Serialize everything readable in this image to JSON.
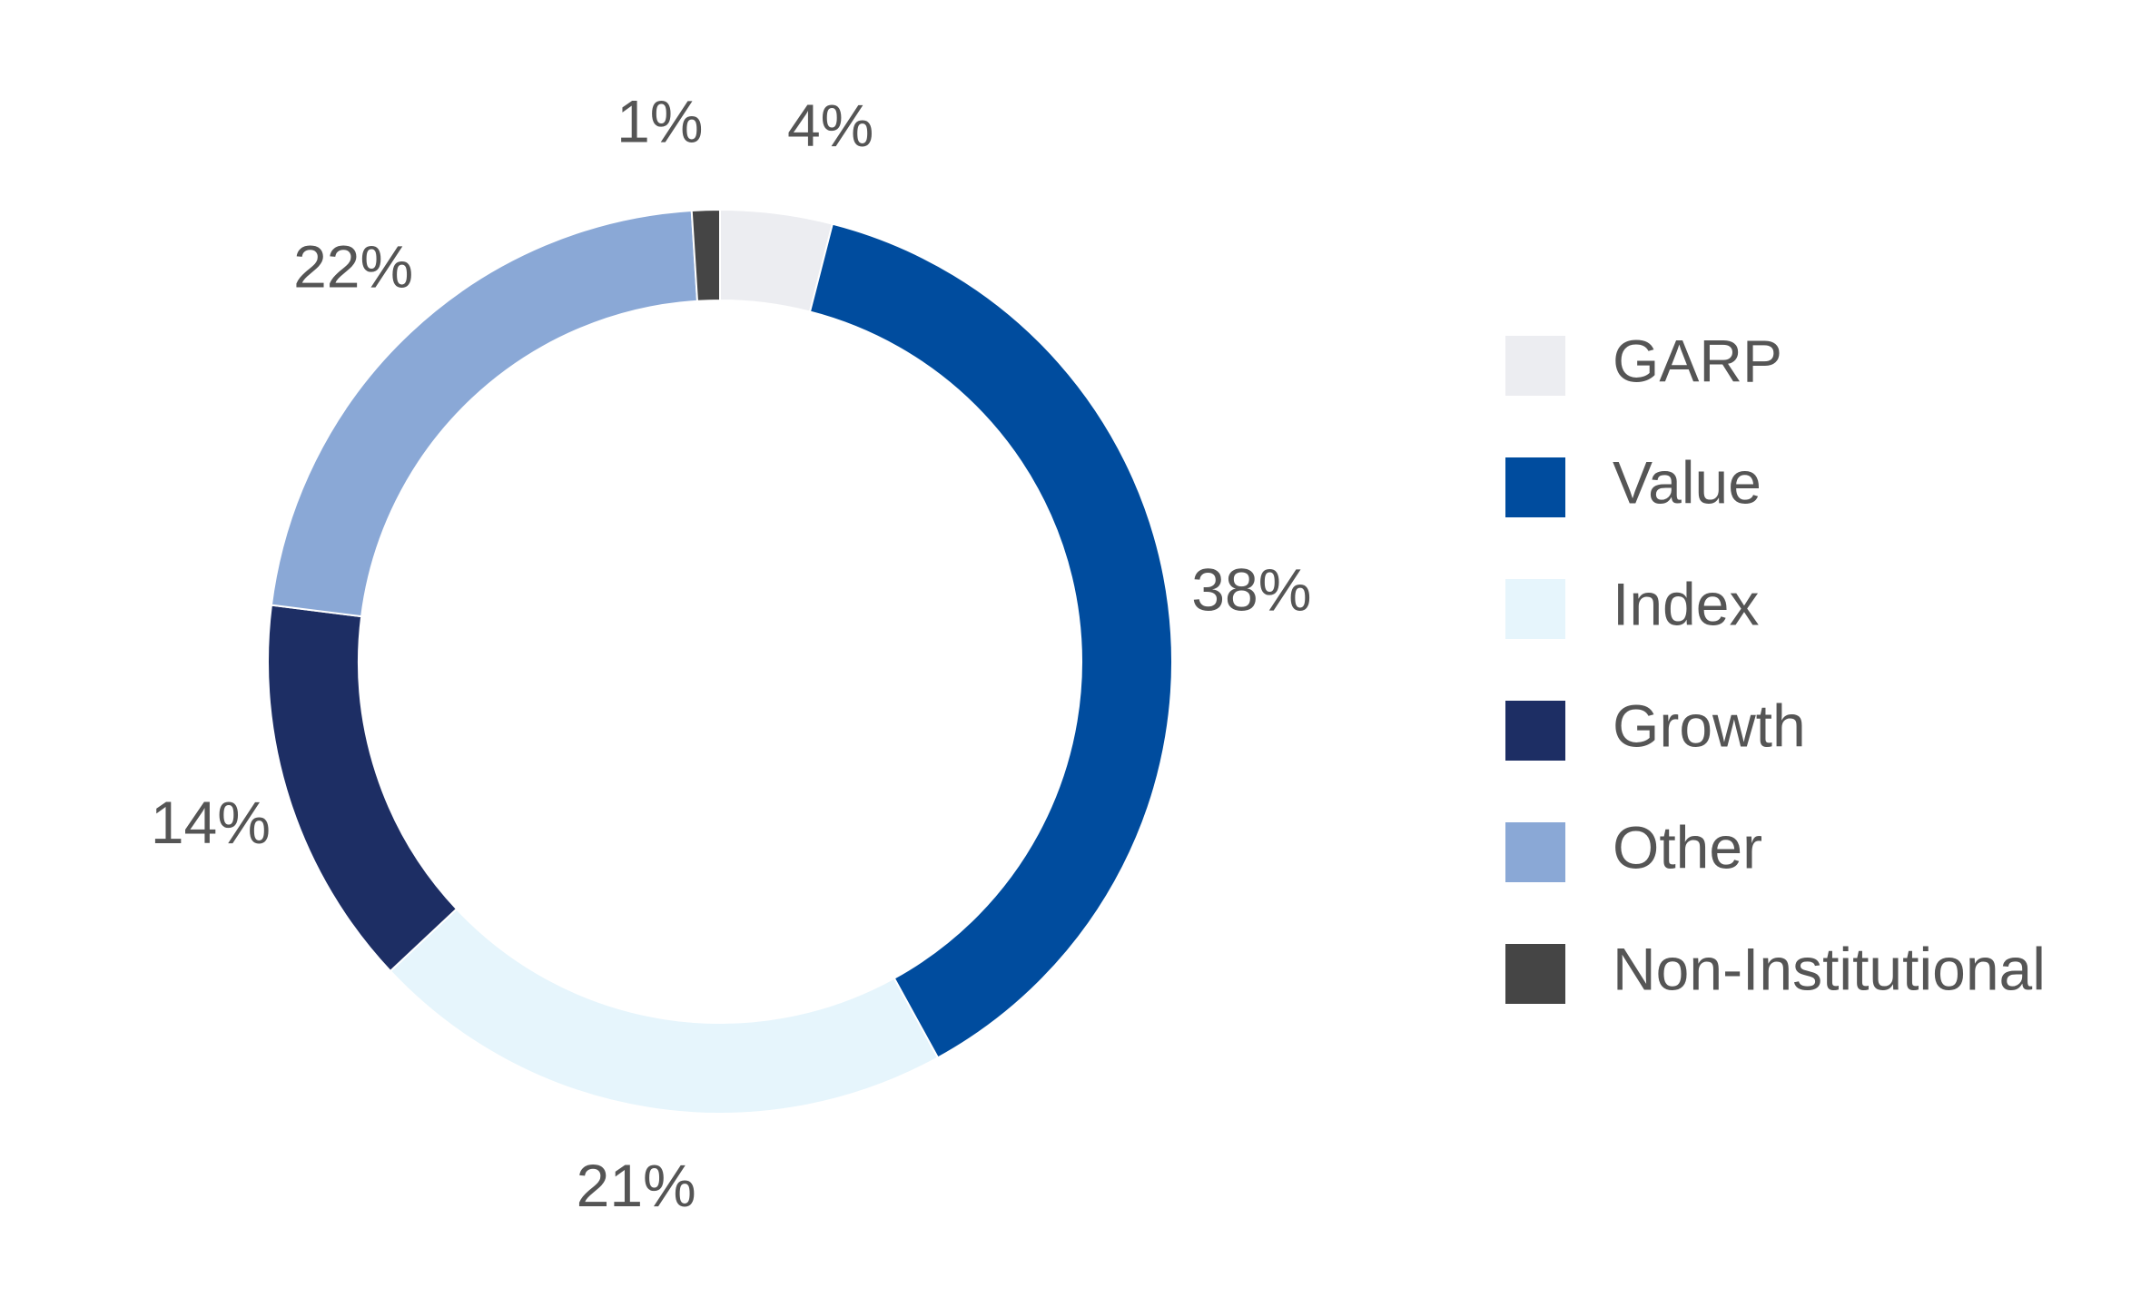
{
  "chart_data": {
    "type": "donut",
    "categories": [
      "GARP",
      "Value",
      "Index",
      "Growth",
      "Other",
      "Non-Institutional"
    ],
    "values": [
      4,
      38,
      21,
      14,
      22,
      1
    ],
    "value_labels": [
      "4%",
      "38%",
      "21%",
      "14%",
      "22%",
      "1%"
    ],
    "colors": [
      "#ecedf1",
      "#004c9e",
      "#e6f5fc",
      "#1d2e64",
      "#8aa8d6",
      "#454545"
    ],
    "legend": "right"
  }
}
